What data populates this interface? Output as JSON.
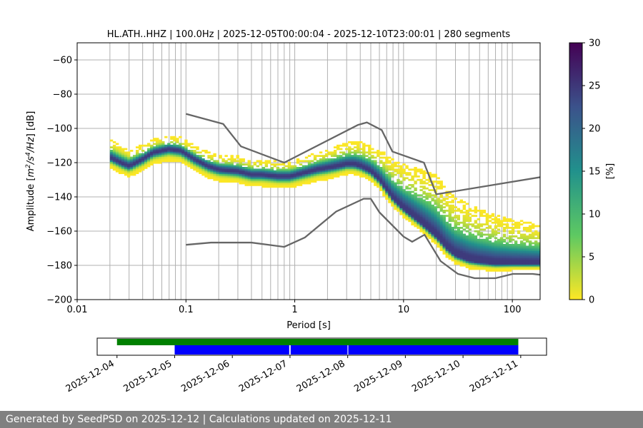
{
  "chart_data": [
    {
      "type": "heatmap",
      "title": "HL.ATH..HHZ | 100.0Hz | 2025-12-05T00:00:04 - 2025-12-10T23:00:01 | 280 segments",
      "xlabel": "Period [s]",
      "ylabel_parts": [
        "Amplitude [",
        "m",
        "2",
        "/s",
        "4",
        "/Hz",
        "] [dB]"
      ],
      "x_scale": "log",
      "xlim": [
        0.01,
        180
      ],
      "ylim": [
        -200,
        -50
      ],
      "x_ticks": [
        0.01,
        0.1,
        1,
        10,
        100
      ],
      "x_tick_labels": [
        "0.01",
        "0.1",
        "1",
        "10",
        "100"
      ],
      "y_ticks": [
        -200,
        -180,
        -160,
        -140,
        -120,
        -100,
        -80,
        -60
      ],
      "y_tick_labels": [
        "−200",
        "−180",
        "−160",
        "−140",
        "−120",
        "−100",
        "−80",
        "−60"
      ],
      "grid": true,
      "psd_mode": {
        "period": [
          0.02,
          0.025,
          0.03,
          0.04,
          0.05,
          0.07,
          0.09,
          0.12,
          0.16,
          0.2,
          0.3,
          0.4,
          0.5,
          0.7,
          0.9,
          1.2,
          1.6,
          2,
          2.5,
          3,
          3.5,
          4,
          5,
          6,
          7,
          8,
          10,
          12,
          15,
          20,
          25,
          30,
          40,
          50,
          70,
          100,
          180
        ],
        "db": [
          -117,
          -120,
          -122,
          -118,
          -114,
          -112,
          -113,
          -118,
          -122,
          -124,
          -125,
          -127,
          -127,
          -128,
          -128,
          -126,
          -124,
          -123,
          -122,
          -121,
          -121,
          -122,
          -125,
          -130,
          -136,
          -141,
          -147,
          -151,
          -156,
          -163,
          -170,
          -174,
          -177,
          -178,
          -179,
          -179,
          -179
        ]
      },
      "psd_spread_db": {
        "period": [
          0.02,
          0.05,
          0.1,
          0.3,
          1,
          2,
          3,
          5,
          8,
          12,
          20,
          40,
          100,
          180
        ],
        "above": [
          10,
          7,
          7,
          8,
          8,
          10,
          12,
          14,
          22,
          28,
          35,
          32,
          25,
          22
        ],
        "below": [
          5,
          6,
          6,
          6,
          6,
          6,
          5,
          5,
          4,
          4,
          4,
          4,
          3,
          3
        ]
      },
      "noise_model_high": {
        "period": [
          0.1,
          0.22,
          0.32,
          0.8,
          3.8,
          4.6,
          6.3,
          7.9,
          15.4,
          20,
          180
        ],
        "db": [
          -91.5,
          -97.4,
          -110.5,
          -120,
          -98,
          -96.5,
          -101,
          -113.5,
          -120,
          -138.5,
          -128.5
        ]
      },
      "noise_model_low": {
        "period": [
          0.1,
          0.17,
          0.4,
          0.8,
          1.24,
          2.4,
          4.3,
          5,
          6,
          10,
          12,
          15.6,
          21.9,
          31.6,
          45,
          70,
          101,
          154,
          180
        ],
        "db": [
          -168,
          -166.7,
          -166.7,
          -169.2,
          -163.7,
          -148.6,
          -141.1,
          -141.1,
          -149,
          -163.2,
          -166.2,
          -162.1,
          -177.5,
          -185,
          -187.5,
          -187.5,
          -185,
          -185,
          -185.5
        ]
      },
      "colors": {
        "noise_model": "#666666",
        "colormap": [
          "#fde725",
          "#5ec962",
          "#21918c",
          "#3b528b",
          "#440154"
        ]
      },
      "colorbar": {
        "label": "[%]",
        "range": [
          0,
          30
        ],
        "ticks": [
          0,
          5,
          10,
          15,
          20,
          25,
          30
        ]
      }
    },
    {
      "type": "timeline",
      "x_tick_labels": [
        "2025-12-04",
        "2025-12-05",
        "2025-12-06",
        "2025-12-07",
        "2025-12-08",
        "2025-12-09",
        "2025-12-10",
        "2025-12-11"
      ],
      "data_available": [
        [
          "2025-12-04T00:00",
          "2025-12-10T23:00"
        ]
      ],
      "psd_segments": [
        [
          "2025-12-05T00:00",
          "2025-12-06T23:40"
        ],
        [
          "2025-12-07T00:15",
          "2025-12-07T23:55"
        ],
        [
          "2025-12-08T00:15",
          "2025-12-10T23:00"
        ]
      ],
      "colors": {
        "available": "#008000",
        "segments": "#0000ff"
      }
    }
  ],
  "footer": "Generated by SeedPSD on 2025-12-12 | Calculations updated on 2025-12-11"
}
